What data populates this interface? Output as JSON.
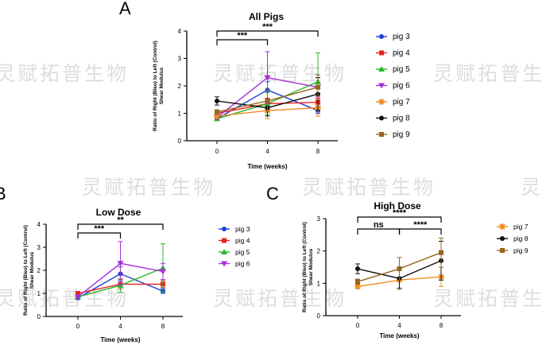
{
  "panel_labels": {
    "a": "A",
    "b": "B",
    "c": "C"
  },
  "watermarks": [
    "灵赋拓普生物",
    "灵赋拓普生物",
    "灵赋拓普生",
    "灵赋拓普生物",
    "灵赋拓普生物",
    "灵",
    "灵赋拓普生物",
    "灵赋拓普生物",
    "灵赋拓普生"
  ],
  "colors": {
    "pig 3": "#1f3fd6",
    "pig 4": "#e8231f",
    "pig 5": "#28b828",
    "pig 6": "#a531d8",
    "pig 7": "#f08a1c",
    "pig 8": "#111111",
    "pig 9": "#96651f"
  },
  "chart_data": [
    {
      "type": "line",
      "title": "All Pigs",
      "xlabel": "Time (weeks)",
      "ylabel_lines": [
        "Ratio of Right (Bleo) to Left (Control)",
        "Shear Modulus"
      ],
      "x": [
        0,
        4,
        8
      ],
      "xticks": [
        "0",
        "4",
        "8"
      ],
      "ylim": [
        0,
        4
      ],
      "yticks": [
        "0",
        "1",
        "2",
        "3",
        "4"
      ],
      "legend": "right",
      "series": [
        {
          "name": "pig 3",
          "marker": "circle",
          "values": [
            0.8,
            1.85,
            1.1
          ],
          "err": [
            0.06,
            0.3,
            0.1
          ]
        },
        {
          "name": "pig 4",
          "marker": "square",
          "values": [
            1.0,
            1.35,
            1.4
          ],
          "err": [
            0.06,
            0.2,
            0.15
          ]
        },
        {
          "name": "pig 5",
          "marker": "triangle-up",
          "values": [
            0.8,
            1.35,
            2.15
          ],
          "err": [
            0.06,
            0.4,
            1.05
          ]
        },
        {
          "name": "pig 6",
          "marker": "triangle-down",
          "values": [
            0.85,
            2.3,
            1.95
          ],
          "err": [
            0.06,
            0.95,
            0.35
          ]
        },
        {
          "name": "pig 7",
          "marker": "star",
          "values": [
            0.9,
            1.1,
            1.2
          ],
          "err": [
            0.06,
            0.3,
            0.3
          ]
        },
        {
          "name": "pig 8",
          "marker": "circle",
          "values": [
            1.45,
            1.2,
            1.7
          ],
          "err": [
            0.15,
            0.3,
            0.6
          ]
        },
        {
          "name": "pig 9",
          "marker": "square",
          "values": [
            1.05,
            1.45,
            1.95
          ],
          "err": [
            0.08,
            0.4,
            0.45
          ]
        }
      ],
      "brackets": [
        {
          "from": 0,
          "to": 8,
          "label": "***"
        },
        {
          "from": 0,
          "to": 4,
          "label": "***"
        }
      ]
    },
    {
      "type": "line",
      "title": "Low Dose",
      "xlabel": "Time (weeks)",
      "ylabel_lines": [
        "Ratio of Right (Bleo) to Left (Control)",
        "Shear Modulus"
      ],
      "x": [
        0,
        4,
        8
      ],
      "xticks": [
        "0",
        "4",
        "8"
      ],
      "ylim": [
        0,
        4
      ],
      "yticks": [
        "0",
        "1",
        "2",
        "3",
        "4"
      ],
      "legend": "right",
      "series": [
        {
          "name": "pig 3",
          "marker": "circle",
          "values": [
            0.8,
            1.85,
            1.1
          ],
          "err": [
            0.06,
            0.3,
            0.1
          ]
        },
        {
          "name": "pig 4",
          "marker": "square",
          "values": [
            1.0,
            1.4,
            1.4
          ],
          "err": [
            0.06,
            0.2,
            0.15
          ]
        },
        {
          "name": "pig 5",
          "marker": "triangle-up",
          "values": [
            0.85,
            1.35,
            2.1
          ],
          "err": [
            0.06,
            0.3,
            1.05
          ]
        },
        {
          "name": "pig 6",
          "marker": "triangle-down",
          "values": [
            0.85,
            2.3,
            1.95
          ],
          "err": [
            0.06,
            0.95,
            0.35
          ]
        }
      ],
      "brackets": [
        {
          "from": 0,
          "to": 8,
          "label": "**"
        },
        {
          "from": 0,
          "to": 4,
          "label": "***"
        }
      ]
    },
    {
      "type": "line",
      "title": "High Dose",
      "xlabel": "Time (weeks)",
      "ylabel_lines": [
        "Ratio of Right (Bleo) to Left (Control)",
        "Shear Modulus"
      ],
      "x": [
        0,
        4,
        8
      ],
      "xticks": [
        "0",
        "4",
        "8"
      ],
      "ylim": [
        0,
        3
      ],
      "yticks": [
        "0",
        "1",
        "2",
        "3"
      ],
      "legend": "right",
      "series": [
        {
          "name": "pig 7",
          "marker": "star",
          "values": [
            0.9,
            1.1,
            1.2
          ],
          "err": [
            0.06,
            0.3,
            0.3
          ]
        },
        {
          "name": "pig 8",
          "marker": "circle",
          "values": [
            1.45,
            1.15,
            1.7
          ],
          "err": [
            0.15,
            0.3,
            0.6
          ]
        },
        {
          "name": "pig 9",
          "marker": "square",
          "values": [
            1.05,
            1.45,
            1.95
          ],
          "err": [
            0.08,
            0.35,
            0.45
          ]
        }
      ],
      "brackets": [
        {
          "from": 0,
          "to": 8,
          "label": "****"
        },
        {
          "from": 0,
          "to": 4,
          "label": "ns"
        },
        {
          "from": 4,
          "to": 8,
          "label": "****"
        }
      ]
    }
  ]
}
